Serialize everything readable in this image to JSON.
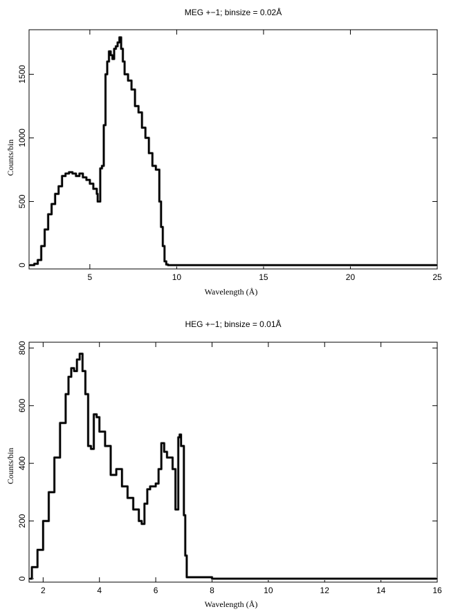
{
  "chart_data": [
    {
      "type": "line",
      "title": "MEG +−1; binsize = 0.02Å",
      "xlabel": "Wavelength (Å)",
      "ylabel": "Counts/bin",
      "xlim": [
        1.5,
        25
      ],
      "ylim": [
        -30,
        1850
      ],
      "xticks": [
        5,
        10,
        15,
        20,
        25
      ],
      "yticks": [
        0,
        500,
        1000,
        1500
      ],
      "grid": false,
      "series": [
        {
          "x": [
            1.5,
            1.8,
            2.0,
            2.2,
            2.4,
            2.6,
            2.8,
            3.0,
            3.2,
            3.4,
            3.6,
            3.8,
            4.0,
            4.2,
            4.4,
            4.6,
            4.8,
            5.0,
            5.2,
            5.4,
            5.45,
            5.6,
            5.7,
            5.8,
            5.9,
            6.0,
            6.1,
            6.2,
            6.3,
            6.4,
            6.5,
            6.6,
            6.7,
            6.8,
            6.9,
            7.0,
            7.2,
            7.4,
            7.6,
            7.8,
            8.0,
            8.2,
            8.4,
            8.6,
            8.8,
            9.0,
            9.1,
            9.2,
            9.3,
            9.4,
            9.5,
            10,
            15,
            20,
            25
          ],
          "y": [
            0,
            10,
            40,
            150,
            280,
            400,
            480,
            560,
            620,
            700,
            720,
            730,
            720,
            700,
            720,
            690,
            670,
            640,
            600,
            560,
            500,
            760,
            780,
            1100,
            1500,
            1600,
            1680,
            1650,
            1620,
            1700,
            1720,
            1750,
            1790,
            1700,
            1600,
            1500,
            1450,
            1380,
            1250,
            1200,
            1080,
            1000,
            880,
            780,
            750,
            500,
            300,
            150,
            30,
            5,
            0,
            0,
            0,
            0,
            0
          ]
        }
      ]
    },
    {
      "type": "line",
      "title": "HEG +−1; binsize = 0.01Å",
      "xlabel": "Wavelength (Å)",
      "ylabel": "Counts/bin",
      "xlim": [
        1.5,
        16
      ],
      "ylim": [
        -12,
        820
      ],
      "xticks": [
        2,
        4,
        6,
        8,
        10,
        12,
        14,
        16
      ],
      "yticks": [
        0,
        200,
        400,
        600,
        800
      ],
      "grid": false,
      "series": [
        {
          "x": [
            1.5,
            1.6,
            1.8,
            2.0,
            2.2,
            2.4,
            2.6,
            2.8,
            2.9,
            3.0,
            3.1,
            3.2,
            3.3,
            3.4,
            3.5,
            3.6,
            3.7,
            3.8,
            3.9,
            4.0,
            4.2,
            4.4,
            4.6,
            4.8,
            5.0,
            5.2,
            5.4,
            5.5,
            5.6,
            5.7,
            5.8,
            6.0,
            6.1,
            6.2,
            6.3,
            6.4,
            6.6,
            6.7,
            6.8,
            6.85,
            6.9,
            7.0,
            7.05,
            7.1,
            8,
            10,
            12,
            14,
            16
          ],
          "y": [
            0,
            40,
            100,
            200,
            300,
            420,
            540,
            640,
            700,
            730,
            720,
            760,
            780,
            720,
            640,
            460,
            450,
            570,
            560,
            510,
            460,
            360,
            380,
            320,
            280,
            240,
            200,
            190,
            260,
            310,
            320,
            330,
            380,
            470,
            440,
            420,
            380,
            240,
            490,
            500,
            460,
            220,
            80,
            5,
            0,
            0,
            0,
            0,
            0
          ]
        }
      ]
    }
  ]
}
